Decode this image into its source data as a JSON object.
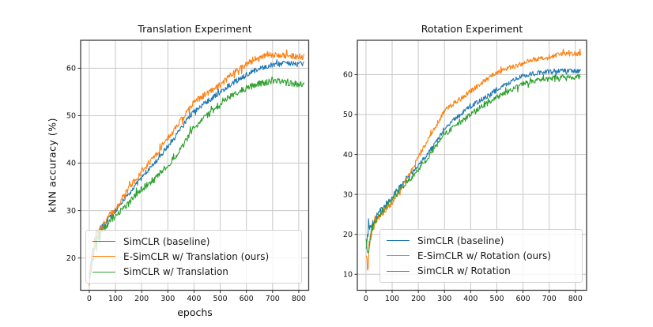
{
  "figure": {
    "background": "#ffffff"
  },
  "palette": {
    "blue": "#1f77b4",
    "orange": "#ff7f0e",
    "green": "#2ca02c",
    "grid": "#c8c8c8",
    "spine": "#3c3c3c",
    "tick": "#333333",
    "text": "#111111",
    "legend_border": "#d2d2d2",
    "legend_bg": "rgba(255,255,255,0.8)"
  },
  "chart_data": [
    {
      "type": "line",
      "title": "Translation Experiment",
      "xlabel": "epochs",
      "ylabel": "kNN accuracy (%)",
      "xlim": [
        -33,
        838
      ],
      "ylim": [
        13.2,
        65.9
      ],
      "xticks": [
        0,
        100,
        200,
        300,
        400,
        500,
        600,
        700,
        800
      ],
      "yticks": [
        20,
        30,
        40,
        50,
        60
      ],
      "grid": true,
      "legend_position": "lower left",
      "series": [
        {
          "name": "SimCLR (baseline)",
          "color_key": "blue",
          "noise": 0.55,
          "seed": 101,
          "points": [
            [
              0,
              16
            ],
            [
              10,
              21
            ],
            [
              25,
              25
            ],
            [
              50,
              26.5
            ],
            [
              75,
              28.5
            ],
            [
              100,
              30
            ],
            [
              150,
              33.5
            ],
            [
              200,
              37
            ],
            [
              250,
              40
            ],
            [
              300,
              43.5
            ],
            [
              350,
              47.5
            ],
            [
              400,
              51
            ],
            [
              450,
              53
            ],
            [
              500,
              55
            ],
            [
              550,
              57
            ],
            [
              600,
              58.5
            ],
            [
              650,
              60
            ],
            [
              700,
              60.7
            ],
            [
              750,
              61
            ],
            [
              790,
              61
            ],
            [
              820,
              60.9
            ]
          ]
        },
        {
          "name": "E-SimCLR w/ Translation (ours)",
          "color_key": "orange",
          "noise": 0.65,
          "seed": 202,
          "points": [
            [
              0,
              15.5
            ],
            [
              10,
              20
            ],
            [
              25,
              24.5
            ],
            [
              50,
              26.5
            ],
            [
              75,
              28.7
            ],
            [
              100,
              30.5
            ],
            [
              150,
              34.5
            ],
            [
              200,
              38.2
            ],
            [
              250,
              41.5
            ],
            [
              300,
              45.3
            ],
            [
              350,
              49
            ],
            [
              400,
              52.8
            ],
            [
              450,
              54.8
            ],
            [
              500,
              56.5
            ],
            [
              550,
              59
            ],
            [
              600,
              61
            ],
            [
              650,
              62.3
            ],
            [
              680,
              63
            ],
            [
              700,
              62.8
            ],
            [
              750,
              62.6
            ],
            [
              820,
              62.4
            ]
          ]
        },
        {
          "name": "SimCLR w/ Translation",
          "color_key": "green",
          "noise": 0.65,
          "seed": 303,
          "points": [
            [
              0,
              15.5
            ],
            [
              10,
              19
            ],
            [
              25,
              23.5
            ],
            [
              50,
              25.5
            ],
            [
              75,
              27.5
            ],
            [
              100,
              29
            ],
            [
              150,
              31.5
            ],
            [
              200,
              34.5
            ],
            [
              250,
              36.8
            ],
            [
              300,
              39.5
            ],
            [
              350,
              43
            ],
            [
              400,
              47.5
            ],
            [
              450,
              50
            ],
            [
              500,
              52.5
            ],
            [
              550,
              54.5
            ],
            [
              600,
              55.8
            ],
            [
              650,
              56.8
            ],
            [
              700,
              57.3
            ],
            [
              720,
              57.5
            ],
            [
              750,
              57
            ],
            [
              820,
              56.5
            ]
          ]
        }
      ]
    },
    {
      "type": "line",
      "title": "Rotation Experiment",
      "xlabel": "",
      "ylabel": "",
      "xlim": [
        -33,
        843
      ],
      "ylim": [
        6.0,
        68.6
      ],
      "xticks": [
        0,
        100,
        200,
        300,
        400,
        500,
        600,
        700,
        800
      ],
      "yticks": [
        10,
        20,
        30,
        40,
        50,
        60
      ],
      "grid": true,
      "legend_position": "lower right",
      "series": [
        {
          "name": "SimCLR (baseline)",
          "color_key": "blue",
          "noise": 0.6,
          "seed": 404,
          "points": [
            [
              0,
              17
            ],
            [
              10,
              21
            ],
            [
              25,
              22.5
            ],
            [
              50,
              25.5
            ],
            [
              100,
              29.5
            ],
            [
              150,
              33.5
            ],
            [
              200,
              37
            ],
            [
              250,
              41.5
            ],
            [
              300,
              46.5
            ],
            [
              350,
              49.5
            ],
            [
              400,
              52
            ],
            [
              450,
              54
            ],
            [
              500,
              56.2
            ],
            [
              550,
              58
            ],
            [
              600,
              59.8
            ],
            [
              650,
              60.3
            ],
            [
              700,
              60.8
            ],
            [
              750,
              60.9
            ],
            [
              820,
              61
            ]
          ]
        },
        {
          "name": "E-SimCLR w/ Rotation (ours)",
          "color_key": "orange",
          "noise": 0.6,
          "seed": 505,
          "points": [
            [
              0,
              16
            ],
            [
              4,
              13
            ],
            [
              7,
              10
            ],
            [
              12,
              17.5
            ],
            [
              25,
              21.5
            ],
            [
              50,
              24.5
            ],
            [
              100,
              27.8
            ],
            [
              150,
              33
            ],
            [
              200,
              39.5
            ],
            [
              250,
              45
            ],
            [
              300,
              51
            ],
            [
              350,
              53.5
            ],
            [
              400,
              55.8
            ],
            [
              450,
              58.3
            ],
            [
              500,
              60.5
            ],
            [
              550,
              61.8
            ],
            [
              600,
              62.8
            ],
            [
              650,
              63.8
            ],
            [
              700,
              64.5
            ],
            [
              750,
              65.1
            ],
            [
              820,
              65.2
            ]
          ]
        },
        {
          "name": "SimCLR w/ Rotation",
          "color_key": "green",
          "noise": 0.65,
          "seed": 606,
          "points": [
            [
              0,
              17
            ],
            [
              8,
              16
            ],
            [
              25,
              22
            ],
            [
              50,
              24.8
            ],
            [
              100,
              28.8
            ],
            [
              150,
              32.5
            ],
            [
              200,
              36
            ],
            [
              250,
              40.5
            ],
            [
              300,
              45
            ],
            [
              350,
              47.5
            ],
            [
              400,
              50.2
            ],
            [
              450,
              52.3
            ],
            [
              500,
              54.3
            ],
            [
              550,
              56
            ],
            [
              600,
              57.8
            ],
            [
              650,
              58.6
            ],
            [
              700,
              59
            ],
            [
              750,
              59.3
            ],
            [
              820,
              59.5
            ]
          ]
        }
      ]
    }
  ]
}
